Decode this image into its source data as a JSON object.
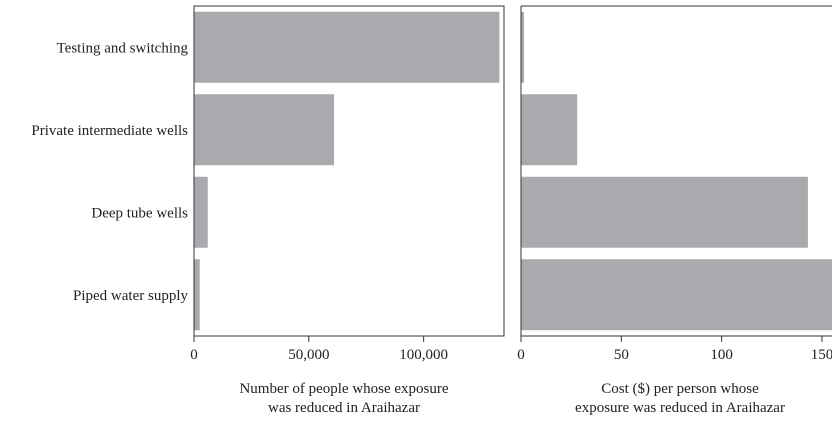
{
  "chart_data": [
    {
      "type": "bar",
      "orientation": "horizontal",
      "categories": [
        "Testing and switching",
        "Private intermediate wells",
        "Deep tube wells",
        "Piped water supply"
      ],
      "values": [
        133000,
        61000,
        6000,
        2500
      ],
      "xlim": [
        0,
        135000
      ],
      "xticks": [
        0,
        50000,
        100000
      ],
      "xtick_labels": [
        "0",
        "50,000",
        "100,000"
      ],
      "xlabel": [
        "Number of people whose exposure",
        "was reduced in Araihazar"
      ],
      "bar_color": "#a9aaad"
    },
    {
      "type": "bar",
      "orientation": "horizontal",
      "categories": [
        "Testing and switching",
        "Private intermediate wells",
        "Deep tube wells",
        "Piped water supply"
      ],
      "values": [
        1.5,
        28,
        143,
        160
      ],
      "xlim": [
        0,
        155
      ],
      "xticks": [
        0,
        50,
        100,
        150
      ],
      "xtick_labels": [
        "0",
        "50",
        "100",
        "150"
      ],
      "xlabel": [
        "Cost ($) per person whose",
        "exposure was reduced in Araihazar"
      ],
      "bar_color": "#a9aaad"
    }
  ]
}
